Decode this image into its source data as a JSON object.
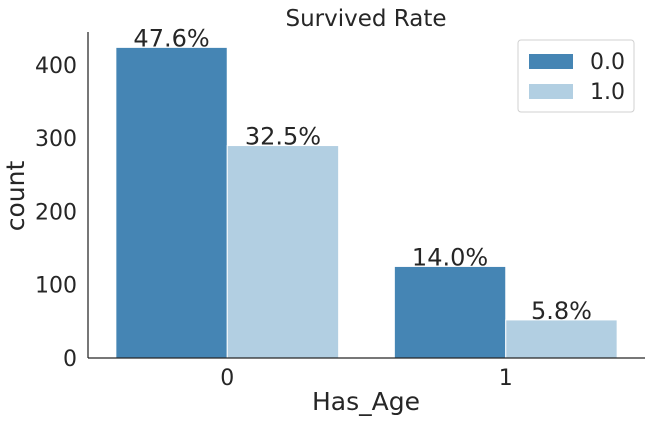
{
  "chart_data": {
    "type": "bar",
    "title": "Survived Rate",
    "xlabel": "Has_Age",
    "ylabel": "count",
    "categories": [
      "0",
      "1"
    ],
    "series": [
      {
        "name": "0.0",
        "color": "#4585b4",
        "values": [
          424,
          125
        ],
        "labels": [
          "47.6%",
          "14.0%"
        ]
      },
      {
        "name": "1.0",
        "color": "#b2cfe2",
        "values": [
          290,
          52
        ],
        "labels": [
          "32.5%",
          "5.8%"
        ]
      }
    ],
    "yticks": [
      0,
      100,
      200,
      300,
      400
    ],
    "ylim": [
      0,
      445
    ],
    "grid": false,
    "legend_position": "top-right"
  }
}
